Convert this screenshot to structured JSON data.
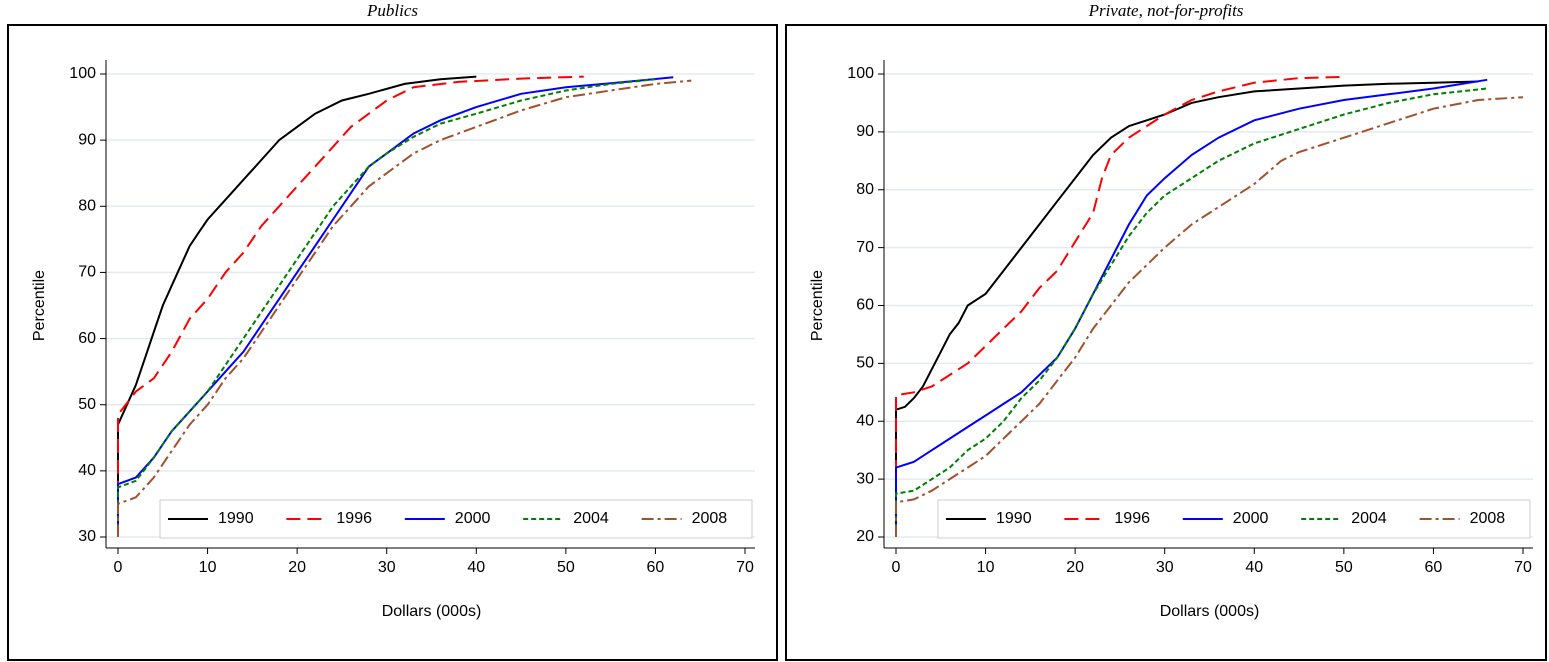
{
  "chart_data": [
    {
      "type": "line",
      "title": "Publics",
      "x_label": "Dollars (000s)",
      "y_label": "Percentile",
      "xlim": [
        0,
        70
      ],
      "xticks": [
        0,
        10,
        20,
        30,
        40,
        50,
        60,
        70
      ],
      "ylim": [
        30,
        100
      ],
      "yticks": [
        30,
        40,
        50,
        60,
        70,
        80,
        90,
        100
      ],
      "grid": true,
      "legend": "bottom",
      "series": [
        {
          "name": "1990",
          "color": "#000000",
          "dash": "solid",
          "x": [
            0,
            0,
            1,
            2,
            3,
            4,
            5,
            6,
            7,
            8,
            9,
            10,
            12,
            14,
            16,
            18,
            20,
            22,
            25,
            28,
            32,
            36,
            40
          ],
          "values": [
            30,
            47,
            50,
            53,
            57,
            61,
            65,
            68,
            71,
            74,
            76,
            78,
            81,
            84,
            87,
            90,
            92,
            94,
            96,
            97,
            98.5,
            99.2,
            99.6
          ]
        },
        {
          "name": "1996",
          "color": "#ff0000",
          "dash": "dashed",
          "x": [
            0,
            0,
            2,
            4,
            6,
            8,
            10,
            12,
            14,
            16,
            18,
            20,
            22,
            24,
            26,
            28,
            30,
            33,
            38,
            45,
            52
          ],
          "values": [
            30,
            48.5,
            52,
            54,
            58,
            63,
            66,
            70,
            73,
            77,
            80,
            83,
            86,
            89,
            92,
            94,
            96,
            98,
            98.8,
            99.3,
            99.6
          ]
        },
        {
          "name": "2000",
          "color": "#0000ff",
          "dash": "solid",
          "x": [
            0,
            0,
            2,
            4,
            6,
            8,
            10,
            12,
            14,
            16,
            18,
            20,
            22,
            24,
            26,
            28,
            30,
            33,
            36,
            40,
            45,
            50,
            55,
            62
          ],
          "values": [
            30,
            38,
            39,
            42,
            46,
            49,
            52,
            55,
            58,
            62,
            66,
            70,
            74,
            78,
            82,
            86,
            88,
            91,
            93,
            95,
            97,
            98,
            98.6,
            99.5
          ]
        },
        {
          "name": "2004",
          "color": "#008000",
          "dash": "dotted",
          "x": [
            0,
            0,
            2,
            4,
            6,
            8,
            10,
            12,
            14,
            16,
            18,
            20,
            22,
            24,
            26,
            28,
            30,
            33,
            36,
            40,
            45,
            50,
            55,
            60
          ],
          "values": [
            30,
            37.5,
            38.5,
            42,
            46,
            49,
            52,
            56,
            60,
            64,
            68,
            72,
            76,
            80,
            83,
            86,
            88,
            90.5,
            92.5,
            94,
            96,
            97.5,
            98.5,
            99.2
          ]
        },
        {
          "name": "2008",
          "color": "#a0522d",
          "dash": "dashdot",
          "x": [
            0,
            0,
            2,
            4,
            6,
            8,
            10,
            12,
            14,
            16,
            18,
            20,
            22,
            24,
            26,
            28,
            30,
            33,
            36,
            40,
            45,
            50,
            55,
            60,
            64
          ],
          "values": [
            30,
            35,
            36,
            39,
            43,
            47,
            50,
            54,
            57,
            61,
            65,
            69,
            73,
            77,
            80,
            83,
            85,
            88,
            90,
            92,
            94.5,
            96.5,
            97.5,
            98.5,
            99
          ]
        }
      ]
    },
    {
      "type": "line",
      "title": "Private, not-for-profits",
      "x_label": "Dollars (000s)",
      "y_label": "Percentile",
      "xlim": [
        0,
        70
      ],
      "xticks": [
        0,
        10,
        20,
        30,
        40,
        50,
        60,
        70
      ],
      "ylim": [
        20,
        100
      ],
      "yticks": [
        20,
        30,
        40,
        50,
        60,
        70,
        80,
        90,
        100
      ],
      "grid": true,
      "legend": "bottom",
      "series": [
        {
          "name": "1990",
          "color": "#000000",
          "dash": "solid",
          "x": [
            0,
            0,
            1,
            2,
            3,
            4,
            5,
            6,
            7,
            8,
            10,
            12,
            14,
            16,
            18,
            20,
            22,
            24,
            26,
            28,
            30,
            33,
            36,
            40,
            45,
            50,
            55,
            60,
            65
          ],
          "values": [
            20,
            42,
            42.5,
            44,
            46,
            49,
            52,
            55,
            57,
            60,
            62,
            66,
            70,
            74,
            78,
            82,
            86,
            89,
            91,
            92,
            93,
            95,
            96,
            97,
            97.5,
            98,
            98.3,
            98.5,
            98.7
          ]
        },
        {
          "name": "1996",
          "color": "#ff0000",
          "dash": "dashed",
          "x": [
            0,
            0,
            2,
            4,
            6,
            8,
            10,
            12,
            14,
            16,
            18,
            20,
            22,
            23,
            24,
            26,
            28,
            30,
            33,
            36,
            40,
            45,
            50
          ],
          "values": [
            20,
            44.5,
            45,
            46,
            48,
            50,
            53,
            56,
            59,
            63,
            66,
            71,
            76,
            82,
            86,
            89,
            91,
            93,
            95.5,
            97,
            98.5,
            99.3,
            99.5
          ]
        },
        {
          "name": "2000",
          "color": "#0000ff",
          "dash": "solid",
          "x": [
            0,
            0,
            2,
            4,
            6,
            8,
            10,
            12,
            14,
            16,
            18,
            20,
            22,
            24,
            26,
            28,
            30,
            33,
            36,
            40,
            45,
            50,
            55,
            60,
            66
          ],
          "values": [
            20,
            32,
            33,
            35,
            37,
            39,
            41,
            43,
            45,
            48,
            51,
            56,
            62,
            68,
            74,
            79,
            82,
            86,
            89,
            92,
            94,
            95.5,
            96.5,
            97.5,
            99
          ]
        },
        {
          "name": "2004",
          "color": "#008000",
          "dash": "dotted",
          "x": [
            0,
            0,
            2,
            4,
            6,
            8,
            10,
            12,
            14,
            16,
            18,
            20,
            22,
            24,
            26,
            28,
            30,
            33,
            36,
            40,
            45,
            50,
            55,
            60,
            66
          ],
          "values": [
            20,
            27.5,
            28,
            30,
            32,
            35,
            37,
            40,
            44,
            47,
            51,
            56,
            62,
            67,
            72,
            76,
            79,
            82,
            85,
            88,
            90.5,
            93,
            95,
            96.5,
            97.5
          ]
        },
        {
          "name": "2008",
          "color": "#a0522d",
          "dash": "dashdot",
          "x": [
            0,
            0,
            2,
            4,
            6,
            8,
            10,
            12,
            14,
            16,
            18,
            20,
            22,
            24,
            26,
            28,
            30,
            33,
            36,
            40,
            43,
            45,
            50,
            55,
            60,
            65,
            70
          ],
          "values": [
            20,
            26,
            26.5,
            28,
            30,
            32,
            34,
            37,
            40,
            43,
            47,
            51,
            56,
            60,
            64,
            67,
            70,
            74,
            77,
            81,
            85,
            86.5,
            89,
            91.5,
            94,
            95.5,
            96
          ]
        }
      ]
    }
  ]
}
